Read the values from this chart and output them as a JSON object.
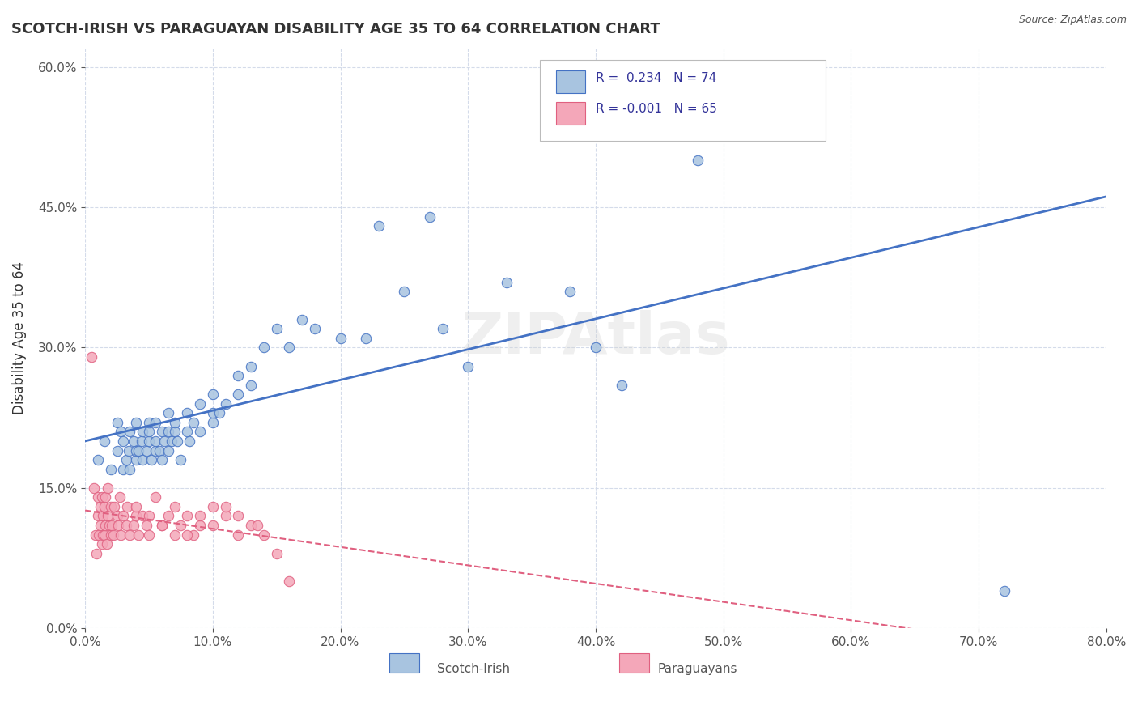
{
  "title": "SCOTCH-IRISH VS PARAGUAYAN DISABILITY AGE 35 TO 64 CORRELATION CHART",
  "source": "Source: ZipAtlas.com",
  "xlabel_bottom": "",
  "ylabel": "Disability Age 35 to 64",
  "x_min": 0.0,
  "x_max": 0.8,
  "y_min": 0.0,
  "y_max": 0.62,
  "x_ticks": [
    0.0,
    0.1,
    0.2,
    0.3,
    0.4,
    0.5,
    0.6,
    0.7,
    0.8
  ],
  "x_tick_labels": [
    "0.0%",
    "10.0%",
    "20.0%",
    "30.0%",
    "40.0%",
    "50.0%",
    "60.0%",
    "70.0%",
    "80.0%"
  ],
  "y_ticks": [
    0.0,
    0.15,
    0.3,
    0.45,
    0.6
  ],
  "y_tick_labels": [
    "0.0%",
    "15.0%",
    "30.0%",
    "45.0%",
    "60.0%"
  ],
  "scotch_irish_R": 0.234,
  "scotch_irish_N": 74,
  "paraguayan_R": -0.001,
  "paraguayan_N": 65,
  "scotch_irish_color": "#a8c4e0",
  "paraguayan_color": "#f4a7b9",
  "scotch_irish_line_color": "#4472c4",
  "paraguayan_line_color": "#e06080",
  "background_color": "#ffffff",
  "grid_color": "#d0d8e8",
  "watermark": "ZIPAtlas",
  "scotch_irish_scatter_x": [
    0.01,
    0.015,
    0.02,
    0.025,
    0.025,
    0.028,
    0.03,
    0.03,
    0.032,
    0.034,
    0.035,
    0.035,
    0.038,
    0.04,
    0.04,
    0.04,
    0.042,
    0.044,
    0.045,
    0.045,
    0.048,
    0.05,
    0.05,
    0.05,
    0.052,
    0.055,
    0.055,
    0.055,
    0.058,
    0.06,
    0.06,
    0.062,
    0.065,
    0.065,
    0.065,
    0.068,
    0.07,
    0.07,
    0.072,
    0.075,
    0.08,
    0.08,
    0.082,
    0.085,
    0.09,
    0.09,
    0.1,
    0.1,
    0.1,
    0.105,
    0.11,
    0.12,
    0.12,
    0.13,
    0.13,
    0.14,
    0.15,
    0.16,
    0.17,
    0.18,
    0.2,
    0.22,
    0.23,
    0.25,
    0.27,
    0.28,
    0.3,
    0.33,
    0.38,
    0.4,
    0.42,
    0.48,
    0.56,
    0.72
  ],
  "scotch_irish_scatter_y": [
    0.18,
    0.2,
    0.17,
    0.19,
    0.22,
    0.21,
    0.17,
    0.2,
    0.18,
    0.19,
    0.17,
    0.21,
    0.2,
    0.18,
    0.19,
    0.22,
    0.19,
    0.2,
    0.18,
    0.21,
    0.19,
    0.2,
    0.21,
    0.22,
    0.18,
    0.19,
    0.2,
    0.22,
    0.19,
    0.18,
    0.21,
    0.2,
    0.19,
    0.21,
    0.23,
    0.2,
    0.21,
    0.22,
    0.2,
    0.18,
    0.21,
    0.23,
    0.2,
    0.22,
    0.21,
    0.24,
    0.22,
    0.23,
    0.25,
    0.23,
    0.24,
    0.25,
    0.27,
    0.26,
    0.28,
    0.3,
    0.32,
    0.3,
    0.33,
    0.32,
    0.31,
    0.31,
    0.43,
    0.36,
    0.44,
    0.32,
    0.28,
    0.37,
    0.36,
    0.3,
    0.26,
    0.5,
    0.54,
    0.04
  ],
  "paraguayan_scatter_x": [
    0.005,
    0.007,
    0.008,
    0.009,
    0.01,
    0.01,
    0.011,
    0.012,
    0.012,
    0.013,
    0.013,
    0.014,
    0.014,
    0.015,
    0.015,
    0.016,
    0.016,
    0.017,
    0.018,
    0.018,
    0.019,
    0.02,
    0.02,
    0.021,
    0.022,
    0.023,
    0.025,
    0.026,
    0.027,
    0.028,
    0.03,
    0.032,
    0.033,
    0.035,
    0.038,
    0.04,
    0.04,
    0.042,
    0.045,
    0.048,
    0.05,
    0.055,
    0.06,
    0.065,
    0.07,
    0.075,
    0.08,
    0.085,
    0.09,
    0.1,
    0.11,
    0.12,
    0.13,
    0.15,
    0.16,
    0.12,
    0.14,
    0.11,
    0.1,
    0.09,
    0.08,
    0.07,
    0.06,
    0.05,
    0.135
  ],
  "paraguayan_scatter_y": [
    0.29,
    0.15,
    0.1,
    0.08,
    0.12,
    0.14,
    0.1,
    0.11,
    0.13,
    0.09,
    0.14,
    0.1,
    0.12,
    0.1,
    0.13,
    0.11,
    0.14,
    0.09,
    0.12,
    0.15,
    0.11,
    0.1,
    0.13,
    0.11,
    0.1,
    0.13,
    0.12,
    0.11,
    0.14,
    0.1,
    0.12,
    0.11,
    0.13,
    0.1,
    0.11,
    0.12,
    0.13,
    0.1,
    0.12,
    0.11,
    0.1,
    0.14,
    0.11,
    0.12,
    0.1,
    0.11,
    0.12,
    0.1,
    0.11,
    0.13,
    0.12,
    0.1,
    0.11,
    0.08,
    0.05,
    0.12,
    0.1,
    0.13,
    0.11,
    0.12,
    0.1,
    0.13,
    0.11,
    0.12,
    0.11
  ]
}
